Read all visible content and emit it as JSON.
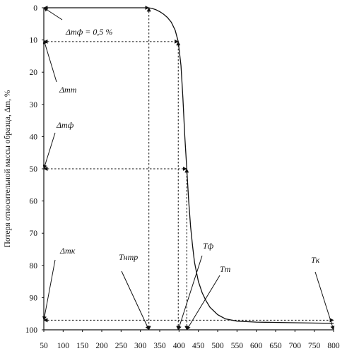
{
  "chart_data": {
    "type": "line",
    "title": "",
    "xlabel": "",
    "ylabel": "Потеря относительной массы образца, Δm, %",
    "xlim": [
      50,
      800
    ],
    "ylim": [
      0,
      100
    ],
    "y_inverted": true,
    "grid": false,
    "x_ticks": [
      "50",
      "100",
      "150",
      "200",
      "250",
      "300",
      "350",
      "400",
      "450",
      "500",
      "550",
      "600",
      "650",
      "700",
      "750",
      "800"
    ],
    "y_ticks": [
      "0",
      "10",
      "20",
      "30",
      "40",
      "50",
      "60",
      "70",
      "80",
      "90",
      "100"
    ],
    "series": [
      {
        "name": "",
        "x": [
          50,
          150,
          250,
          300,
          320,
          330,
          340,
          350,
          360,
          370,
          380,
          390,
          398,
          405,
          410,
          415,
          420,
          425,
          430,
          435,
          440,
          445,
          450,
          460,
          470,
          480,
          500,
          520,
          550,
          600,
          700,
          800
        ],
        "y": [
          0,
          0,
          0,
          0,
          0,
          0.2,
          0.6,
          1.2,
          2,
          3,
          4.5,
          7,
          10.5,
          18,
          28,
          40,
          50,
          60,
          68,
          74,
          79,
          82,
          85,
          88.5,
          91,
          93,
          95.3,
          96.6,
          97.3,
          97.6,
          97.8,
          98
        ]
      }
    ],
    "annotations": [
      {
        "label": "Δmф = 0,5 %",
        "x": 50,
        "y": 0
      },
      {
        "label": "Δmт",
        "x": 50,
        "y": 10
      },
      {
        "label": "Δmф",
        "x": 50,
        "y": 50
      },
      {
        "label": "Δmк",
        "x": 50,
        "y": 97
      },
      {
        "label": "Tнтр",
        "x": 322,
        "y": 100
      },
      {
        "label": "Tф",
        "x": 398,
        "y": 100
      },
      {
        "label": "Tт",
        "x": 420,
        "y": 100
      },
      {
        "label": "Tк",
        "x": 800,
        "y": 100
      }
    ],
    "reference_lines": [
      {
        "from": [
          50,
          0
        ],
        "to": [
          322,
          0
        ]
      },
      {
        "from": [
          322,
          0
        ],
        "to": [
          322,
          100
        ]
      },
      {
        "from": [
          50,
          10.5
        ],
        "to": [
          398,
          10.5
        ]
      },
      {
        "from": [
          398,
          10.5
        ],
        "to": [
          398,
          100
        ]
      },
      {
        "from": [
          50,
          50
        ],
        "to": [
          420,
          50
        ]
      },
      {
        "from": [
          420,
          50
        ],
        "to": [
          420,
          100
        ]
      },
      {
        "from": [
          50,
          97
        ],
        "to": [
          800,
          97
        ]
      }
    ]
  }
}
